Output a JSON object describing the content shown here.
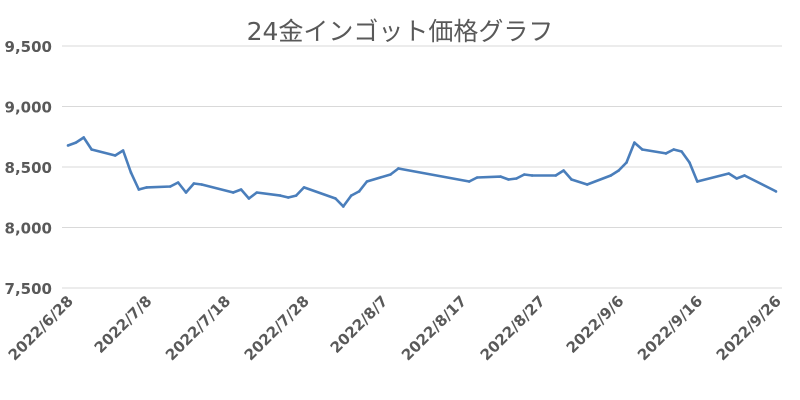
{
  "chart_data": {
    "type": "line",
    "title": "24金インゴット価格グラフ",
    "xlabel": "",
    "ylabel": "",
    "ylim": [
      7500,
      9500
    ],
    "yticks": [
      7500,
      8000,
      8500,
      9000,
      9500
    ],
    "ytick_labels": [
      "7,500",
      "8,000",
      "8,500",
      "9,000",
      "9,500"
    ],
    "xlim": [
      "2022/6/28",
      "2022/9/26"
    ],
    "xtick_labels": [
      "2022/6/28",
      "2022/7/8",
      "2022/7/18",
      "2022/7/28",
      "2022/8/7",
      "2022/8/17",
      "2022/8/27",
      "2022/9/6",
      "2022/9/16",
      "2022/9/26"
    ],
    "grid": true,
    "color": "#4a7ebb",
    "series": [
      {
        "x": [
          "2022/6/28",
          "2022/6/29",
          "2022/6/30",
          "2022/7/1",
          "2022/7/4",
          "2022/7/5",
          "2022/7/6",
          "2022/7/7",
          "2022/7/8",
          "2022/7/11",
          "2022/7/12",
          "2022/7/13",
          "2022/7/14",
          "2022/7/15",
          "2022/7/19",
          "2022/7/20",
          "2022/7/21",
          "2022/7/22",
          "2022/7/25",
          "2022/7/26",
          "2022/7/27",
          "2022/7/28",
          "2022/8/1",
          "2022/8/2",
          "2022/8/3",
          "2022/8/4",
          "2022/8/5",
          "2022/8/8",
          "2022/8/9",
          "2022/8/18",
          "2022/8/19",
          "2022/8/22",
          "2022/8/23",
          "2022/8/24",
          "2022/8/25",
          "2022/8/26",
          "2022/8/29",
          "2022/8/30",
          "2022/8/31",
          "2022/9/2",
          "2022/9/5",
          "2022/9/6",
          "2022/9/7",
          "2022/9/8",
          "2022/9/9",
          "2022/9/12",
          "2022/9/13",
          "2022/9/14",
          "2022/9/15",
          "2022/9/16",
          "2022/9/20",
          "2022/9/21",
          "2022/9/22",
          "2022/9/26"
        ],
        "values": [
          8678,
          8702,
          8744,
          8645,
          8595,
          8636,
          8455,
          8314,
          8331,
          8339,
          8372,
          8289,
          8364,
          8355,
          8289,
          8314,
          8240,
          8289,
          8264,
          8248,
          8264,
          8331,
          8240,
          8174,
          8264,
          8298,
          8380,
          8438,
          8488,
          8380,
          8413,
          8421,
          8397,
          8405,
          8438,
          8430,
          8430,
          8471,
          8397,
          8355,
          8430,
          8471,
          8537,
          8702,
          8645,
          8612,
          8645,
          8628,
          8537,
          8380,
          8446,
          8405,
          8430,
          8298
        ]
      }
    ]
  }
}
